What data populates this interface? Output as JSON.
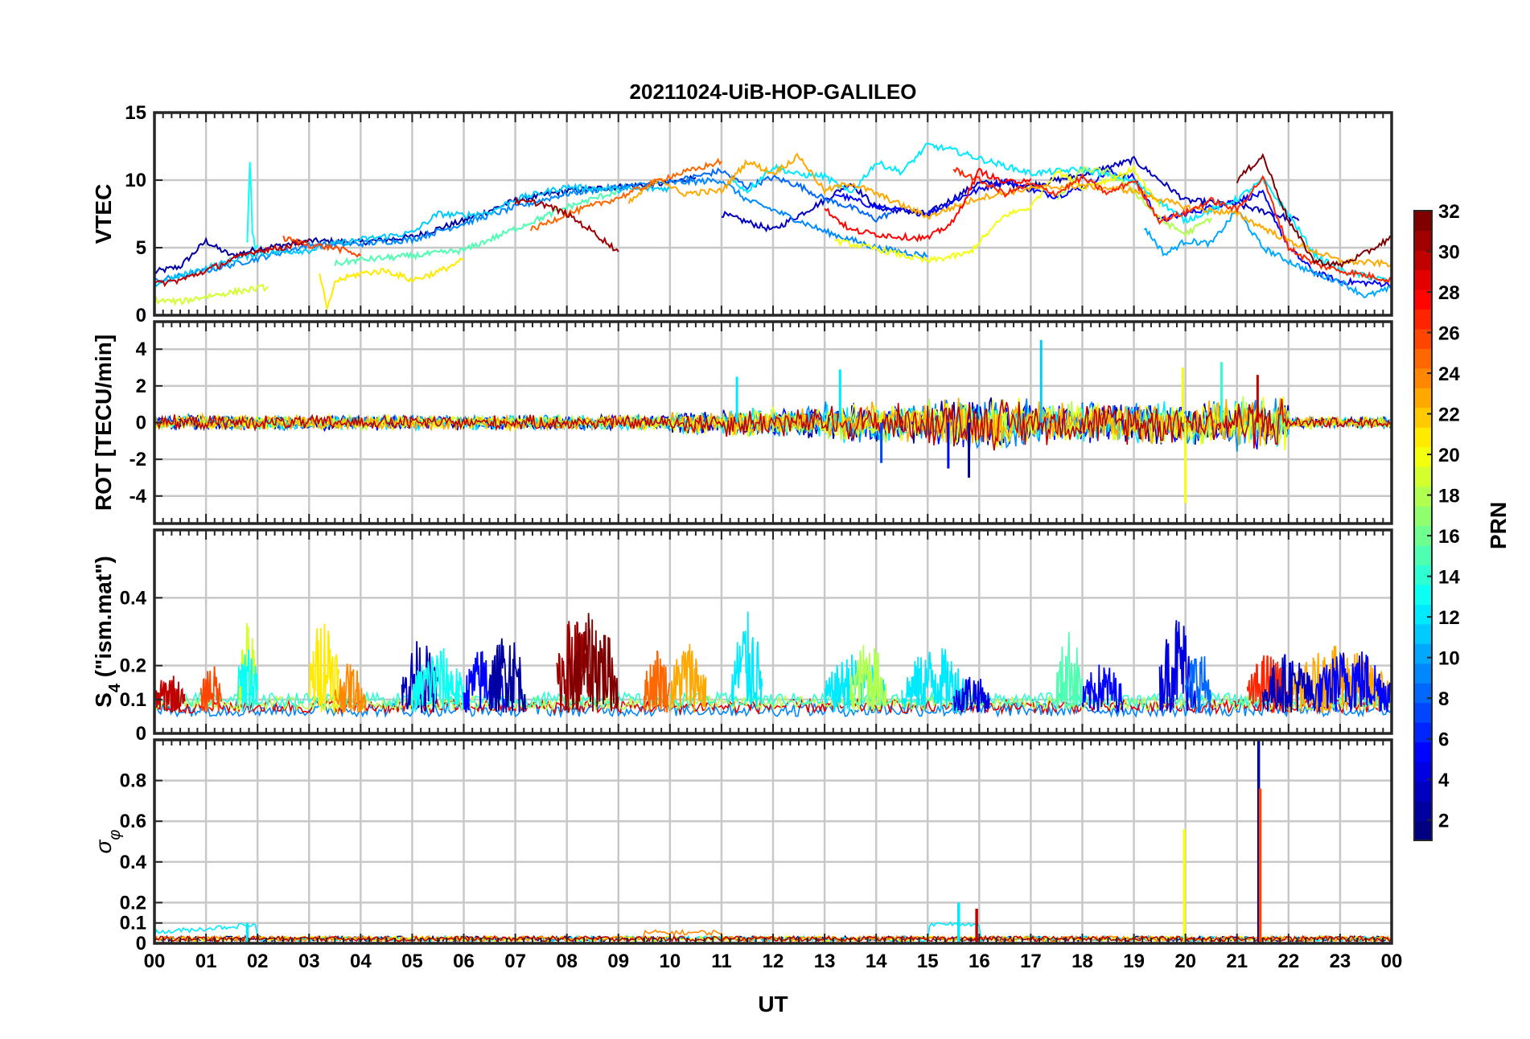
{
  "chart_data": {
    "title": "20211024-UiB-HOP-GALILEO",
    "type": "line",
    "xlabel": "UT",
    "xlim": [
      0,
      24
    ],
    "x_tick_labels": [
      "00",
      "01",
      "02",
      "03",
      "04",
      "05",
      "06",
      "07",
      "08",
      "09",
      "10",
      "11",
      "12",
      "13",
      "14",
      "15",
      "16",
      "17",
      "18",
      "19",
      "20",
      "21",
      "22",
      "23",
      "00"
    ],
    "grid": true,
    "colorbar": {
      "label": "PRN",
      "range": [
        1,
        32
      ],
      "tick_labels": [
        "2",
        "4",
        "6",
        "8",
        "10",
        "12",
        "14",
        "16",
        "18",
        "20",
        "22",
        "24",
        "26",
        "28",
        "30",
        "32"
      ],
      "colormap": "jet"
    },
    "panels": [
      {
        "id": "vtec",
        "ylabel": "VTEC",
        "ylim": [
          0,
          15
        ],
        "y_tick_labels": [
          "0",
          "5",
          "10",
          "15"
        ],
        "series": [
          {
            "prn": 2,
            "x": [
              0,
              0.5,
              1,
              1.2,
              1.5,
              2,
              3,
              4,
              5,
              6,
              7,
              8,
              9,
              10,
              10.5
            ],
            "y": [
              3.2,
              3.6,
              5.5,
              5,
              4.4,
              4.9,
              5.5,
              5.4,
              5.8,
              7,
              8.5,
              9.2,
              9.5,
              9.8,
              10.2
            ]
          },
          {
            "prn": 3,
            "x": [
              11,
              12,
              13,
              13.5,
              14,
              15,
              16,
              17,
              18,
              19,
              20,
              21,
              22.2
            ],
            "y": [
              7.5,
              6.3,
              8.5,
              9.8,
              8,
              7.5,
              9.8,
              9.6,
              10.4,
              11.5,
              8.5,
              8.2,
              7
            ]
          },
          {
            "prn": 5,
            "x": [
              13.2,
              14,
              15,
              15.8,
              16.5,
              17,
              17.5,
              18,
              18.5,
              19,
              19.5,
              20,
              21,
              21.5,
              22,
              22.5,
              23,
              24
            ],
            "y": [
              9,
              8,
              7.5,
              9,
              10,
              9.3,
              8.8,
              9.5,
              10.6,
              10.2,
              7,
              7.5,
              8.5,
              9,
              5,
              3.2,
              2.5,
              2.3
            ]
          },
          {
            "prn": 8,
            "x": [
              10.2,
              11,
              11.5,
              12,
              12.5,
              13,
              13.5,
              14,
              14.3
            ],
            "y": [
              10,
              10.7,
              9.5,
              10.2,
              9.6,
              8.6,
              8,
              7.1,
              7.6
            ]
          },
          {
            "prn": 9,
            "x": [
              0,
              1,
              2,
              3,
              4,
              5,
              6,
              7,
              8,
              9,
              10,
              11,
              11.5,
              12,
              13,
              14,
              15
            ],
            "y": [
              2.5,
              3.3,
              4.2,
              5.2,
              5.3,
              5.6,
              6.8,
              8,
              9,
              9.5,
              9.8,
              10,
              8.5,
              7.8,
              6.2,
              5,
              4.4
            ]
          },
          {
            "prn": 10,
            "x": [
              19.2,
              19.6,
              20,
              20.5,
              21,
              21.5,
              22,
              22.5,
              23,
              23.5,
              24
            ],
            "y": [
              6.5,
              4.5,
              5.5,
              5.3,
              7.8,
              5,
              4,
              3.1,
              2.5,
              1.4,
              2
            ]
          },
          {
            "prn": 11,
            "x": [
              0,
              1,
              2,
              3,
              3.5,
              4,
              5,
              5.5,
              6,
              6.5,
              7,
              8,
              9,
              10
            ],
            "y": [
              2.3,
              3.5,
              4.6,
              4.8,
              5.3,
              5.6,
              6.1,
              7.5,
              7.4,
              7.6,
              8.6,
              9.5,
              9.3,
              9.4
            ]
          },
          {
            "prn": 12,
            "x": [
              11.2,
              11.5,
              12,
              12.5,
              13,
              13.5,
              14,
              14.5,
              15,
              15.5,
              16,
              17,
              18,
              19,
              20,
              21,
              21.5,
              22,
              22.5,
              23,
              24
            ],
            "y": [
              10,
              9.2,
              11,
              10.4,
              10.3,
              9,
              11.3,
              10.6,
              12.6,
              12.2,
              11.6,
              10.5,
              10.8,
              9.9,
              7,
              8.6,
              10,
              7.5,
              4.5,
              3.3,
              2.5
            ]
          },
          {
            "prn": 13,
            "x": [
              1.8,
              1.85,
              1.9,
              1.95,
              2.0
            ],
            "y": [
              5.5,
              11.4,
              6.2,
              5,
              5.2
            ]
          },
          {
            "prn": 15,
            "x": [
              3.5,
              4,
              5,
              6,
              7,
              8,
              9
            ],
            "y": [
              3.8,
              4.1,
              4.4,
              4.8,
              6.4,
              8,
              9.2
            ]
          },
          {
            "prn": 18,
            "x": [
              17.5,
              18,
              18.5,
              19,
              19.5,
              20,
              20.5
            ],
            "y": [
              8.5,
              10.8,
              10.6,
              9.2,
              7.1,
              6,
              7.2
            ]
          },
          {
            "prn": 19,
            "x": [
              0,
              0.5,
              1,
              1.5,
              2.2
            ],
            "y": [
              1.1,
              1,
              1.4,
              1.7,
              2.1
            ]
          },
          {
            "prn": 20,
            "x": [
              13.2,
              14,
              15,
              15.8,
              16.5,
              17,
              17.5,
              18,
              18.5,
              19,
              19.5
            ],
            "y": [
              5.5,
              4.9,
              4,
              4.6,
              7.4,
              8,
              10.7,
              9.5,
              10,
              10.8,
              8
            ]
          },
          {
            "prn": 21,
            "x": [
              3.2,
              3.35,
              3.5,
              4,
              4.5,
              5,
              5.5,
              6
            ],
            "y": [
              3.2,
              0.3,
              2.5,
              3.1,
              3.3,
              2.6,
              3.2,
              4.1
            ]
          },
          {
            "prn": 23,
            "x": [
              9.2,
              9.8,
              10.2,
              11,
              11.5,
              12,
              12.5,
              13,
              13.5,
              14,
              15,
              16,
              17,
              18,
              19,
              20,
              21,
              22,
              23,
              24
            ],
            "y": [
              8.3,
              10.2,
              9,
              9.2,
              11.4,
              10.5,
              11.8,
              9.2,
              9.8,
              9,
              7.3,
              8.7,
              9.4,
              9.6,
              9.2,
              8,
              7.5,
              5.5,
              4,
              3.8
            ]
          },
          {
            "prn": 25,
            "x": [
              7.3,
              8,
              9,
              10,
              10.5,
              11
            ],
            "y": [
              6.3,
              7.5,
              8.7,
              10.3,
              10.8,
              11.4
            ]
          },
          {
            "prn": 26,
            "x": [
              2.5,
              3,
              3.5,
              4
            ],
            "y": [
              5.7,
              5.2,
              5,
              4.4
            ]
          },
          {
            "prn": 27,
            "x": [
              15.5,
              16,
              16.5,
              17,
              17.5,
              18,
              18.5,
              19,
              19.5,
              20,
              20.5,
              21,
              21.5,
              22,
              22.5,
              23,
              24
            ],
            "y": [
              10.8,
              10,
              9,
              9.7,
              9,
              10.2,
              9,
              10,
              7,
              7.6,
              8.5,
              7.8,
              10.2,
              5,
              3.8,
              3.3,
              2.6
            ]
          },
          {
            "prn": 28,
            "x": [
              13,
              13.5,
              14,
              14.5,
              15,
              15.5,
              16,
              16.5,
              17
            ],
            "y": [
              7.9,
              6.3,
              6,
              5.8,
              5.7,
              6.9,
              10.7,
              9.8,
              10.1
            ]
          },
          {
            "prn": 30,
            "x": [
              0,
              0.5,
              1,
              1.5,
              2,
              2.5,
              3
            ],
            "y": [
              2.3,
              2.6,
              3.3,
              4.1,
              4.8,
              5,
              5.6
            ]
          },
          {
            "prn": 31,
            "x": [
              7,
              7.5,
              8,
              8.5,
              9
            ],
            "y": [
              8.4,
              8.3,
              7.5,
              6.2,
              4.7
            ]
          },
          {
            "prn": 32,
            "x": [
              21,
              21.5,
              22,
              22.5,
              23,
              23.5,
              24
            ],
            "y": [
              10,
              11.8,
              7,
              4,
              3.7,
              4.6,
              5.8
            ]
          }
        ]
      },
      {
        "id": "rot",
        "ylabel": "ROT [TECU/min]",
        "ylim": [
          -5.5,
          5.5
        ],
        "y_tick_labels": [
          "-4",
          "-2",
          "0",
          "2",
          "4"
        ],
        "spikes": [
          {
            "prn": 11,
            "x": 17.2,
            "y": 4.5
          },
          {
            "prn": 20,
            "x": 20.0,
            "y": -4.4
          },
          {
            "prn": 20,
            "x": 19.95,
            "y": 3.0
          },
          {
            "prn": 2,
            "x": 15.8,
            "y": -3.0
          },
          {
            "prn": 5,
            "x": 15.4,
            "y": -2.5
          },
          {
            "prn": 12,
            "x": 11.3,
            "y": 2.5
          },
          {
            "prn": 14,
            "x": 20.7,
            "y": 3.3
          },
          {
            "prn": 30,
            "x": 21.4,
            "y": 2.6
          },
          {
            "prn": 12,
            "x": 13.3,
            "y": 2.9
          },
          {
            "prn": 7,
            "x": 14.1,
            "y": -2.2
          }
        ]
      },
      {
        "id": "s4",
        "ylabel": "S4 (\"ism.mat\")",
        "ylabel_main": "S",
        "ylabel_sub": "4",
        "ylabel_rest": " (\"ism.mat\")",
        "ylim": [
          0,
          0.6
        ],
        "y_tick_labels": [
          "0",
          "0.1",
          "0.2",
          "0.4"
        ],
        "y_tick_values": [
          0,
          0.1,
          0.2,
          0.4
        ]
      },
      {
        "id": "sigma",
        "ylabel": "σφ",
        "ylabel_main": "σ",
        "ylabel_sub": "φ",
        "ylim": [
          0,
          1
        ],
        "y_tick_labels": [
          "0",
          "0.1",
          "0.2",
          "0.4",
          "0.6",
          "0.8"
        ],
        "y_tick_values": [
          0,
          0.1,
          0.2,
          0.4,
          0.6,
          0.8
        ],
        "spikes": [
          {
            "prn": 2,
            "x": 21.42,
            "y": 1.0
          },
          {
            "prn": 26,
            "x": 21.45,
            "y": 0.76
          },
          {
            "prn": 20,
            "x": 19.98,
            "y": 0.56
          },
          {
            "prn": 12,
            "x": 15.6,
            "y": 0.2
          },
          {
            "prn": 30,
            "x": 15.95,
            "y": 0.17
          },
          {
            "prn": 12,
            "x": 1.8,
            "y": 0.1
          }
        ]
      }
    ]
  }
}
